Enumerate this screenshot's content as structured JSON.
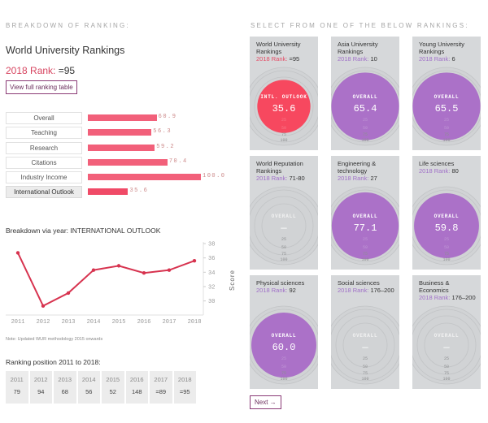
{
  "breakdown": {
    "section_label": "BREAKDOWN OF RANKING:",
    "title": "World University Rankings",
    "rank_label": "2018 Rank:",
    "rank_value": "=95",
    "view_table_button": "View full ranking table",
    "pillars": [
      {
        "label": "Overall",
        "value": "60.9",
        "score": 60.9,
        "active": false
      },
      {
        "label": "Teaching",
        "value": "56.3",
        "score": 56.3,
        "active": false
      },
      {
        "label": "Research",
        "value": "59.2",
        "score": 59.2,
        "active": false
      },
      {
        "label": "Citations",
        "value": "70.4",
        "score": 70.4,
        "active": false
      },
      {
        "label": "Industry Income",
        "value": "100.0",
        "score": 100.0,
        "active": false
      },
      {
        "label": "International Outlook",
        "value": "35.6",
        "score": 35.6,
        "active": true
      }
    ]
  },
  "chart_data": {
    "type": "line",
    "title": "Breakdown via year: INTERNATIONAL OUTLOOK",
    "xlabel": "",
    "ylabel": "Score",
    "x": [
      "2011",
      "2012",
      "2013",
      "2014",
      "2015",
      "2016",
      "2017",
      "2018"
    ],
    "series": [
      {
        "name": "International Outlook",
        "values": [
          36.7,
          29.3,
          31.1,
          34.3,
          34.9,
          33.9,
          34.3,
          35.6
        ],
        "color": "#d7334f"
      }
    ],
    "yticks": [
      30,
      32,
      34,
      36,
      38
    ],
    "ylim": [
      28.6,
      38
    ],
    "grid": false,
    "yaxis_position": "right"
  },
  "note": "Note: Updated WUR methodology 2015 onwards",
  "positions": {
    "title": "Ranking position 2011 to 2018:",
    "items": [
      {
        "year": "2011",
        "rank": "79"
      },
      {
        "year": "2012",
        "rank": "94"
      },
      {
        "year": "2013",
        "rank": "68"
      },
      {
        "year": "2014",
        "rank": "56"
      },
      {
        "year": "2015",
        "rank": "52"
      },
      {
        "year": "2016",
        "rank": "148"
      },
      {
        "year": "2017",
        "rank": "=89"
      },
      {
        "year": "2018",
        "rank": "=95"
      }
    ]
  },
  "select": {
    "section_label": "SELECT FROM ONE OF THE BELOW RANKINGS:",
    "rank_label": "2018 Rank:",
    "ring_labels": [
      "25",
      "50",
      "75",
      "100"
    ],
    "cards": [
      {
        "title": "World University Rankings",
        "rank": "=95",
        "metric": "INTL. OUTLOOK",
        "score_text": "35.6",
        "score": 35.6,
        "color": "#f7485f",
        "selected": true
      },
      {
        "title": "Asia University Rankings",
        "rank": "10",
        "metric": "OVERALL",
        "score_text": "65.4",
        "score": 65.4,
        "color": "#ab71c8",
        "selected": false
      },
      {
        "title": "Young University Rankings",
        "rank": "6",
        "metric": "OVERALL",
        "score_text": "65.5",
        "score": 65.5,
        "color": "#ab71c8",
        "selected": false
      },
      {
        "title": "World Reputation Rankings",
        "rank": "71-80",
        "metric": "OVERALL",
        "score_text": "—",
        "score": null,
        "color": "#ab71c8",
        "selected": false
      },
      {
        "title": "Engineering & technology",
        "rank": "27",
        "metric": "OVERALL",
        "score_text": "77.1",
        "score": 77.1,
        "color": "#ab71c8",
        "selected": false
      },
      {
        "title": "Life sciences",
        "rank": "80",
        "metric": "OVERALL",
        "score_text": "59.8",
        "score": 59.8,
        "color": "#ab71c8",
        "selected": false
      },
      {
        "title": "Physical sciences",
        "rank": "92",
        "metric": "OVERALL",
        "score_text": "60.0",
        "score": 60.0,
        "color": "#ab71c8",
        "selected": false
      },
      {
        "title": "Social sciences",
        "rank": "176–200",
        "metric": "OVERALL",
        "score_text": "—",
        "score": null,
        "color": "#ab71c8",
        "selected": false
      },
      {
        "title": "Business & Economics",
        "rank": "176–200",
        "metric": "OVERALL",
        "score_text": "—",
        "score": null,
        "color": "#ab71c8",
        "selected": false
      }
    ],
    "next_button": "Next →"
  }
}
